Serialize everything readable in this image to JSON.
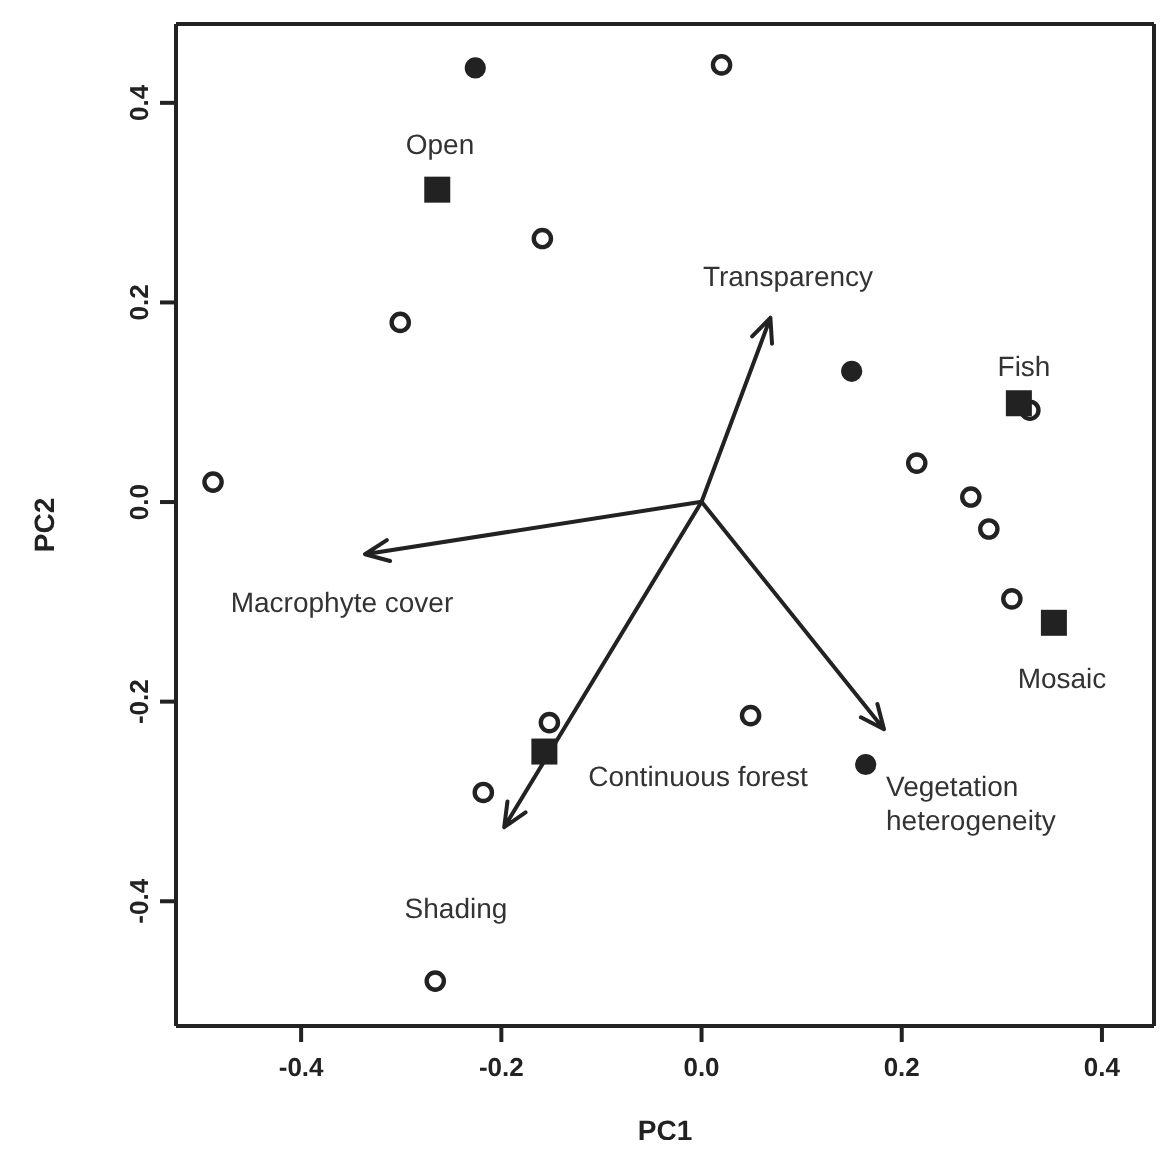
{
  "chart_data": {
    "type": "scatter",
    "xlabel": "PC1",
    "ylabel": "PC2",
    "xlim": [
      -0.525,
      0.452
    ],
    "ylim": [
      -0.525,
      0.479
    ],
    "xticks": [
      -0.4,
      -0.2,
      {
        "value": 0,
        "label": "0.0"
      },
      0.2,
      0.4
    ],
    "yticks": [
      -0.4,
      -0.2,
      {
        "value": 0,
        "label": "0.0"
      },
      0.2,
      0.4
    ],
    "series": [
      {
        "marker": "circle",
        "color": "#222222",
        "x": [
          -0.226,
          0.15,
          0.164
        ],
        "values": [
          0.435,
          0.131,
          -0.263
        ]
      },
      {
        "marker": "circle",
        "color": "#222222",
        "x": [
          0.02,
          -0.159,
          -0.301,
          -0.488,
          0.328,
          0.215,
          0.269,
          0.287,
          0.31,
          0.049,
          -0.152,
          -0.218,
          -0.266
        ],
        "values": [
          0.438,
          0.264,
          0.18,
          0.02,
          0.092,
          0.039,
          0.005,
          -0.027,
          -0.097,
          -0.214,
          -0.221,
          -0.291,
          -0.48
        ]
      },
      {
        "marker": "square",
        "color": "#222222",
        "x": [
          -0.264,
          0.317,
          0.352,
          -0.157
        ],
        "values": [
          0.313,
          0.099,
          -0.121,
          -0.25
        ]
      }
    ],
    "annotations": [
      "Open",
      "Transparency",
      "Fish",
      "Macrophyte cover",
      "Continuous forest",
      "Mosaic",
      "Vegetation heterogeneity",
      "Shading"
    ]
  }
}
